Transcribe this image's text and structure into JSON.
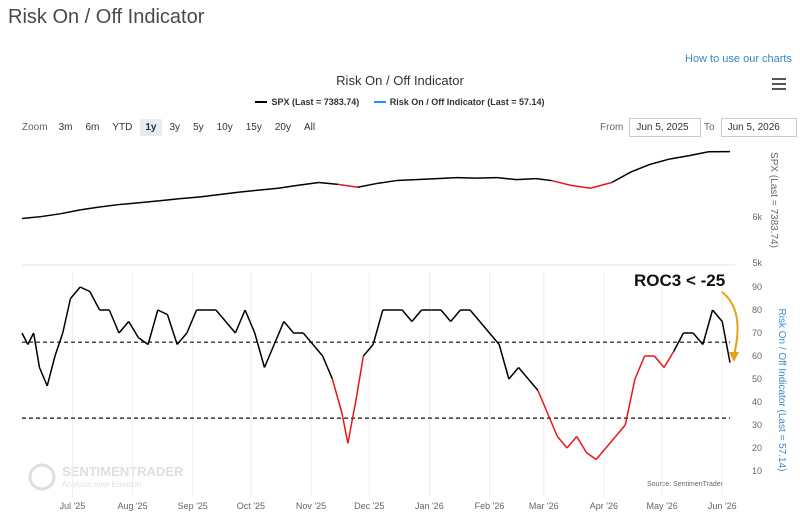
{
  "page": {
    "title": "Risk On / Off Indicator",
    "help_link": "How to use our charts"
  },
  "chart": {
    "title": "Risk On / Off Indicator",
    "legend": [
      {
        "label": "SPX (Last = 7383.74)",
        "color": "#000000"
      },
      {
        "label": "Risk On / Off Indicator (Last = 57.14)",
        "color": "#1e90ff"
      }
    ],
    "zoom": {
      "label": "Zoom",
      "options": [
        "3m",
        "6m",
        "YTD",
        "1y",
        "3y",
        "5y",
        "10y",
        "15y",
        "20y",
        "All"
      ],
      "active": "1y"
    },
    "range": {
      "from_label": "From",
      "from_value": "Jun 5, 2025",
      "to_label": "To",
      "to_value": "Jun 5, 2026"
    },
    "annotation": "ROC3 < -25",
    "watermark": {
      "name": "SENTIMENTRADER",
      "tagline": "Analysis over Emotion"
    },
    "source": "Source: SentimenTrader",
    "colors": {
      "up": "#000000",
      "down": "#e8141b",
      "arrow": "#e3a21a",
      "axis_label": "#3d86c6"
    }
  },
  "chart_data": [
    {
      "type": "line",
      "name": "SPX",
      "ylabel": "SPX (Last = 7383.74)",
      "y_ticks": [
        "6k"
      ],
      "x": [
        "2025-06-05",
        "2025-06-15",
        "2025-06-25",
        "2025-07-05",
        "2025-07-15",
        "2025-07-25",
        "2025-08-05",
        "2025-08-15",
        "2025-08-25",
        "2025-09-05",
        "2025-09-15",
        "2025-09-25",
        "2025-10-05",
        "2025-10-15",
        "2025-10-25",
        "2025-11-05",
        "2025-11-15",
        "2025-11-25",
        "2025-12-05",
        "2025-12-15",
        "2025-12-25",
        "2026-01-05",
        "2026-01-15",
        "2026-01-25",
        "2026-02-05",
        "2026-02-15",
        "2026-02-25",
        "2026-03-05",
        "2026-03-15",
        "2026-03-25",
        "2026-04-05",
        "2026-04-15",
        "2026-04-25",
        "2026-05-05",
        "2026-05-15",
        "2026-05-25",
        "2026-06-05"
      ],
      "y": [
        5990,
        6030,
        6090,
        6170,
        6230,
        6280,
        6320,
        6360,
        6400,
        6440,
        6490,
        6540,
        6580,
        6620,
        6680,
        6740,
        6700,
        6640,
        6720,
        6780,
        6800,
        6820,
        6840,
        6830,
        6840,
        6800,
        6820,
        6780,
        6680,
        6620,
        6740,
        6960,
        7120,
        7230,
        7300,
        7380,
        7383.74
      ],
      "risk_off_ranges": [
        [
          "2025-11-10",
          "2025-11-28"
        ],
        [
          "2026-03-01",
          "2026-04-10"
        ]
      ]
    },
    {
      "type": "line",
      "name": "Risk On / Off Indicator",
      "ylabel": "Risk On / Off Indicator (Last = 57.14)",
      "ylim": [
        5,
        95
      ],
      "y_ticks": [
        10,
        20,
        30,
        40,
        50,
        60,
        70,
        80,
        90
      ],
      "reference_lines": [
        66,
        33
      ],
      "x_ticks": [
        "Jul '25",
        "Aug '25",
        "Sep '25",
        "Oct '25",
        "Nov '25",
        "Dec '25",
        "Jan '26",
        "Feb '26",
        "Mar '26",
        "Apr '26",
        "May '26",
        "Jun '26"
      ],
      "x": [
        "2025-06-05",
        "2025-06-08",
        "2025-06-11",
        "2025-06-14",
        "2025-06-18",
        "2025-06-22",
        "2025-06-26",
        "2025-06-30",
        "2025-07-05",
        "2025-07-10",
        "2025-07-15",
        "2025-07-20",
        "2025-07-25",
        "2025-07-30",
        "2025-08-04",
        "2025-08-09",
        "2025-08-14",
        "2025-08-19",
        "2025-08-24",
        "2025-08-29",
        "2025-09-03",
        "2025-09-08",
        "2025-09-13",
        "2025-09-18",
        "2025-09-23",
        "2025-09-28",
        "2025-10-03",
        "2025-10-08",
        "2025-10-13",
        "2025-10-18",
        "2025-10-23",
        "2025-10-28",
        "2025-11-02",
        "2025-11-07",
        "2025-11-12",
        "2025-11-17",
        "2025-11-20",
        "2025-11-24",
        "2025-11-28",
        "2025-12-03",
        "2025-12-08",
        "2025-12-13",
        "2025-12-18",
        "2025-12-23",
        "2025-12-28",
        "2026-01-02",
        "2026-01-07",
        "2026-01-12",
        "2026-01-17",
        "2026-01-22",
        "2026-01-27",
        "2026-02-01",
        "2026-02-06",
        "2026-02-11",
        "2026-02-16",
        "2026-02-21",
        "2026-02-26",
        "2026-03-03",
        "2026-03-08",
        "2026-03-13",
        "2026-03-18",
        "2026-03-23",
        "2026-03-28",
        "2026-04-02",
        "2026-04-07",
        "2026-04-12",
        "2026-04-17",
        "2026-04-22",
        "2026-04-27",
        "2026-05-02",
        "2026-05-07",
        "2026-05-12",
        "2026-05-17",
        "2026-05-22",
        "2026-05-27",
        "2026-06-01",
        "2026-06-05"
      ],
      "y": [
        70,
        65,
        70,
        55,
        47,
        60,
        70,
        85,
        90,
        88,
        80,
        80,
        70,
        75,
        68,
        65,
        80,
        78,
        65,
        70,
        80,
        80,
        80,
        75,
        70,
        80,
        70,
        55,
        65,
        75,
        70,
        70,
        65,
        60,
        50,
        35,
        22,
        40,
        60,
        65,
        80,
        80,
        80,
        75,
        80,
        80,
        80,
        75,
        80,
        80,
        75,
        70,
        65,
        50,
        55,
        50,
        45,
        35,
        25,
        20,
        25,
        18,
        15,
        20,
        25,
        30,
        50,
        60,
        60,
        55,
        62,
        70,
        70,
        65,
        80,
        75,
        57.14
      ],
      "risk_off_ranges": [
        [
          "2025-11-10",
          "2025-11-28"
        ],
        [
          "2026-02-26",
          "2026-05-10"
        ]
      ]
    }
  ]
}
